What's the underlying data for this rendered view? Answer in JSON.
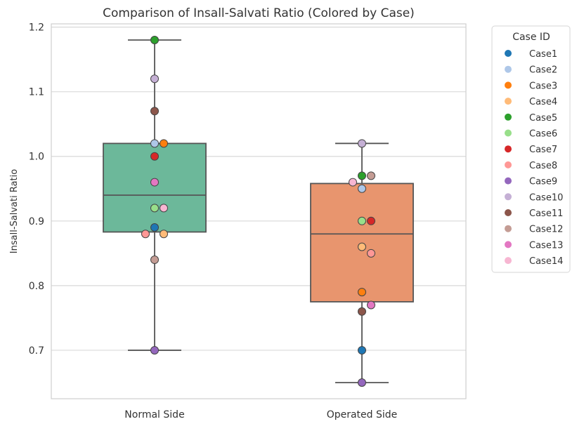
{
  "chart_data": {
    "type": "box",
    "title": "Comparison of Insall-Salvati Ratio (Colored by Case)",
    "xlabel": "",
    "ylabel": "Insall-Salvati Ratio",
    "ylim": [
      0.625,
      1.205
    ],
    "yticks": [
      "0.7",
      "0.8",
      "0.9",
      "1.0",
      "1.1",
      "1.2"
    ],
    "categories": [
      "Normal Side",
      "Operated Side"
    ],
    "grid": "horizontal",
    "boxes": [
      {
        "category": "Normal Side",
        "color": "#6cb89a",
        "whisker_low": 0.7,
        "q1": 0.883,
        "median": 0.94,
        "q3": 1.02,
        "whisker_high": 1.18
      },
      {
        "category": "Operated Side",
        "color": "#e8956e",
        "whisker_low": 0.65,
        "q1": 0.775,
        "median": 0.88,
        "q3": 0.958,
        "whisker_high": 1.02
      }
    ],
    "legend": {
      "title": "Case ID",
      "position": "right"
    },
    "series": [
      {
        "name": "Case1",
        "color": "#1f77b4",
        "values": [
          0.89,
          0.7
        ]
      },
      {
        "name": "Case2",
        "color": "#aec7e8",
        "values": [
          1.02,
          0.95
        ]
      },
      {
        "name": "Case3",
        "color": "#ff7f0e",
        "values": [
          1.02,
          0.79
        ]
      },
      {
        "name": "Case4",
        "color": "#ffbb78",
        "values": [
          0.88,
          0.86
        ]
      },
      {
        "name": "Case5",
        "color": "#2ca02c",
        "values": [
          1.18,
          0.97
        ]
      },
      {
        "name": "Case6",
        "color": "#98df8a",
        "values": [
          0.92,
          0.9
        ]
      },
      {
        "name": "Case7",
        "color": "#d62728",
        "values": [
          1.0,
          0.9
        ]
      },
      {
        "name": "Case8",
        "color": "#ff9896",
        "values": [
          0.88,
          0.85
        ]
      },
      {
        "name": "Case9",
        "color": "#9467bd",
        "values": [
          0.7,
          0.65
        ]
      },
      {
        "name": "Case10",
        "color": "#c5b0d5",
        "values": [
          1.12,
          1.02
        ]
      },
      {
        "name": "Case11",
        "color": "#8c564b",
        "values": [
          1.07,
          0.76
        ]
      },
      {
        "name": "Case12",
        "color": "#c49c94",
        "values": [
          0.84,
          0.97
        ]
      },
      {
        "name": "Case13",
        "color": "#e377c2",
        "values": [
          0.96,
          0.77
        ]
      },
      {
        "name": "Case14",
        "color": "#f7b6d2",
        "values": [
          0.92,
          0.96
        ]
      }
    ]
  }
}
